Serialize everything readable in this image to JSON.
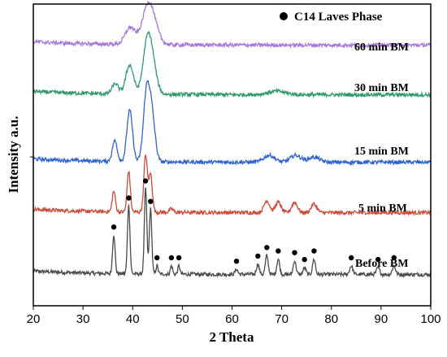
{
  "chart_data": {
    "type": "line",
    "xlabel": "2 Theta",
    "ylabel": "Intensity a.u.",
    "xlim": [
      20,
      100
    ],
    "x_ticks": [
      20,
      30,
      40,
      50,
      60,
      70,
      80,
      90,
      100
    ],
    "y_ticks_labeled": false,
    "legend": {
      "marker": "filled-circle",
      "label": "C14 Laves Phase",
      "placement": "top-right"
    },
    "series": [
      {
        "name": "Before BM",
        "color": "#4a4a4a",
        "baseline": 0.05,
        "peaks": [
          {
            "x": 36.2,
            "h": 0.23,
            "w": 0.35
          },
          {
            "x": 39.2,
            "h": 0.4,
            "w": 0.35
          },
          {
            "x": 42.6,
            "h": 0.5,
            "w": 0.35
          },
          {
            "x": 43.6,
            "h": 0.38,
            "w": 0.35
          },
          {
            "x": 44.9,
            "h": 0.05,
            "w": 0.3
          },
          {
            "x": 47.8,
            "h": 0.05,
            "w": 0.3
          },
          {
            "x": 49.3,
            "h": 0.05,
            "w": 0.3
          },
          {
            "x": 60.9,
            "h": 0.03,
            "w": 0.4
          },
          {
            "x": 65.2,
            "h": 0.06,
            "w": 0.4
          },
          {
            "x": 67.0,
            "h": 0.11,
            "w": 0.4
          },
          {
            "x": 69.3,
            "h": 0.09,
            "w": 0.4
          },
          {
            "x": 72.6,
            "h": 0.08,
            "w": 0.4
          },
          {
            "x": 74.6,
            "h": 0.04,
            "w": 0.4
          },
          {
            "x": 76.5,
            "h": 0.09,
            "w": 0.4
          },
          {
            "x": 84.0,
            "h": 0.05,
            "w": 0.45
          },
          {
            "x": 89.4,
            "h": 0.04,
            "w": 0.45
          },
          {
            "x": 92.6,
            "h": 0.05,
            "w": 0.45
          }
        ],
        "phase_markers_x": [
          36.2,
          39.2,
          42.6,
          43.6,
          44.9,
          47.8,
          49.3,
          60.9,
          65.2,
          67.0,
          69.3,
          72.6,
          74.6,
          76.5,
          84.0,
          89.4,
          92.6
        ]
      },
      {
        "name": "5 min BM",
        "color": "#cc4a3a",
        "baseline": 0.05,
        "peaks": [
          {
            "x": 36.2,
            "h": 0.12,
            "w": 0.45
          },
          {
            "x": 39.2,
            "h": 0.24,
            "w": 0.45
          },
          {
            "x": 42.6,
            "h": 0.33,
            "w": 0.5
          },
          {
            "x": 43.6,
            "h": 0.22,
            "w": 0.5
          },
          {
            "x": 47.8,
            "h": 0.02,
            "w": 0.5
          },
          {
            "x": 67.0,
            "h": 0.07,
            "w": 0.8
          },
          {
            "x": 69.3,
            "h": 0.06,
            "w": 0.8
          },
          {
            "x": 72.6,
            "h": 0.06,
            "w": 0.8
          },
          {
            "x": 76.5,
            "h": 0.05,
            "w": 0.8
          }
        ]
      },
      {
        "name": "15 min BM",
        "color": "#2f63cf",
        "baseline": 0.05,
        "peaks": [
          {
            "x": 36.4,
            "h": 0.12,
            "w": 0.7
          },
          {
            "x": 39.4,
            "h": 0.3,
            "w": 0.8
          },
          {
            "x": 42.8,
            "h": 0.4,
            "w": 0.9
          },
          {
            "x": 43.9,
            "h": 0.25,
            "w": 0.9
          },
          {
            "x": 67.5,
            "h": 0.04,
            "w": 1.5
          },
          {
            "x": 72.8,
            "h": 0.04,
            "w": 1.5
          },
          {
            "x": 76.5,
            "h": 0.03,
            "w": 1.5
          }
        ]
      },
      {
        "name": "30 min BM",
        "color": "#2e9a6a",
        "baseline": 0.05,
        "peaks": [
          {
            "x": 36.5,
            "h": 0.06,
            "w": 0.9
          },
          {
            "x": 39.4,
            "h": 0.17,
            "w": 1.1
          },
          {
            "x": 42.9,
            "h": 0.28,
            "w": 1.2
          },
          {
            "x": 44.0,
            "h": 0.15,
            "w": 1.2
          },
          {
            "x": 69.0,
            "h": 0.02,
            "w": 2.5
          }
        ]
      },
      {
        "name": "60 min BM",
        "color": "#a678d8",
        "baseline": 0.05,
        "peaks": [
          {
            "x": 39.5,
            "h": 0.1,
            "w": 1.4
          },
          {
            "x": 43.0,
            "h": 0.2,
            "w": 1.6
          },
          {
            "x": 44.2,
            "h": 0.08,
            "w": 1.6
          }
        ]
      }
    ]
  }
}
